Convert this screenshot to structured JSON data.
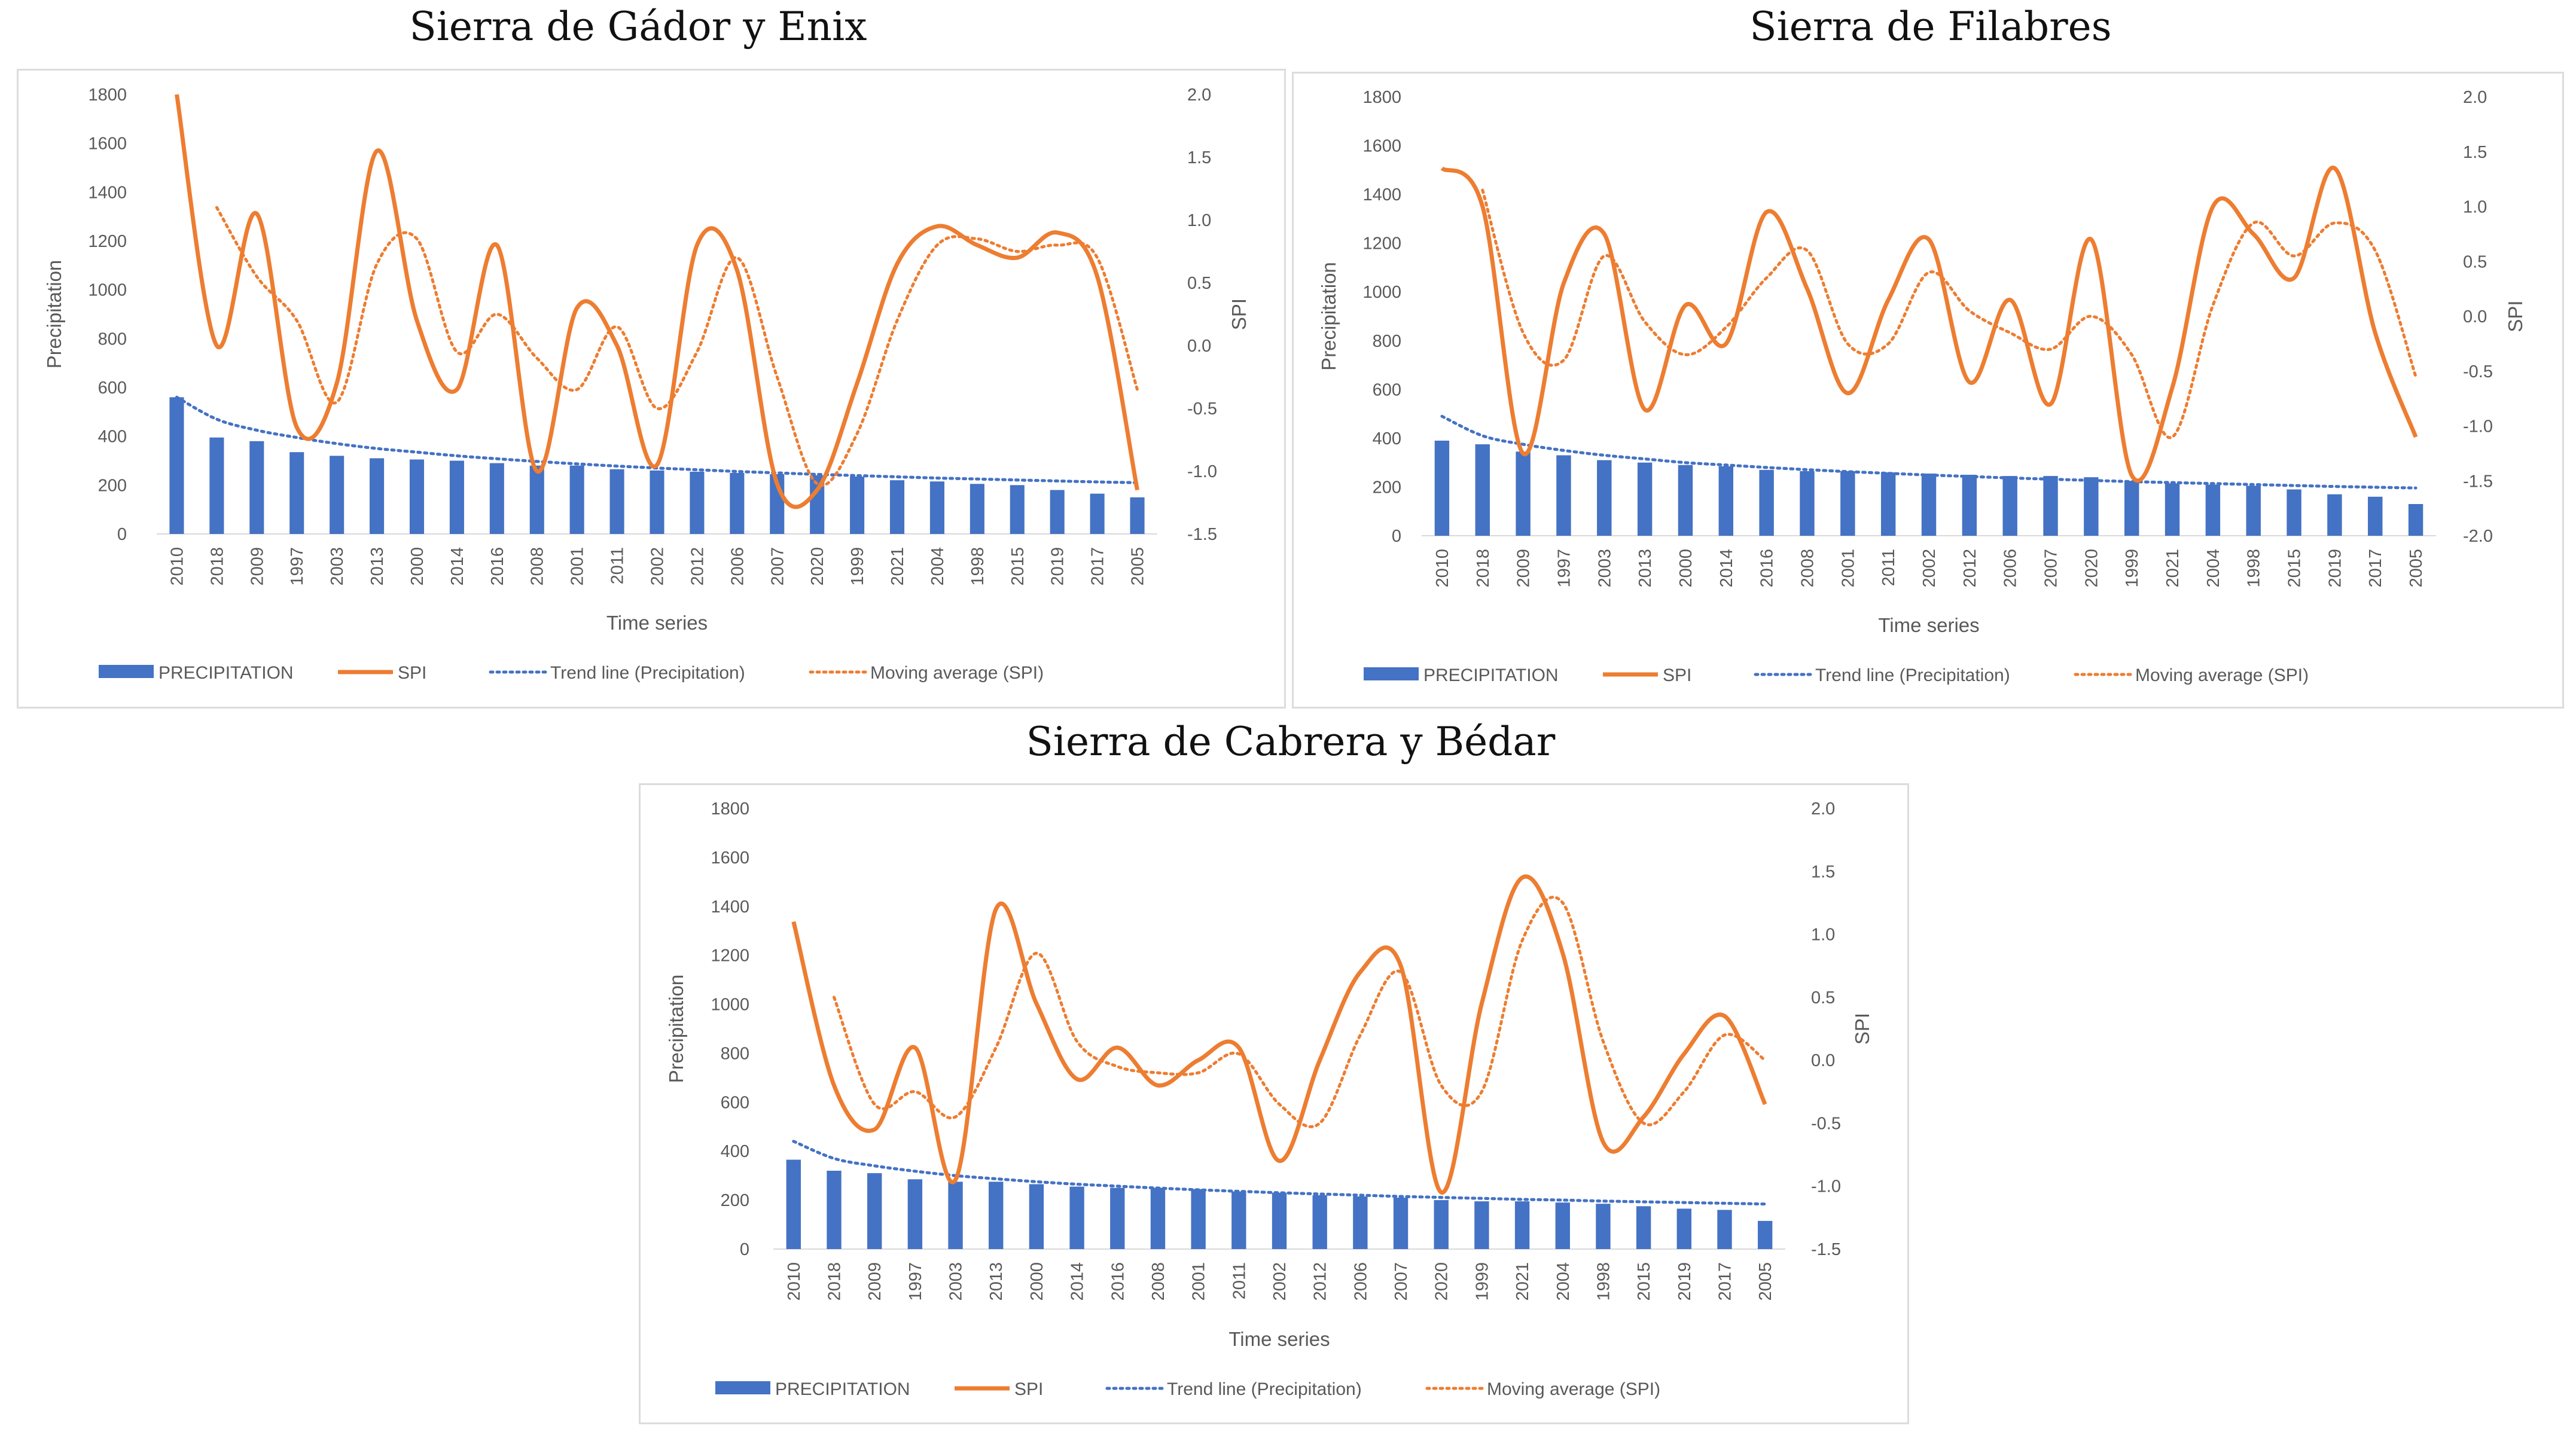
{
  "colors": {
    "bar": "#4472c4",
    "spi": "#ed7d31",
    "trend": "#4472c4",
    "moving": "#ed7d31",
    "tick": "#595959"
  },
  "legend": {
    "precipitation": "PRECIPITATION",
    "spi": "SPI",
    "trend": "Trend line (Precipitation)",
    "moving": "Moving average (SPI)"
  },
  "chart_data": [
    {
      "type": "bar",
      "combo": "bar+line (dual axis)",
      "title": "Sierra de Gádor y Enix",
      "xlabel": "Time series",
      "ylabel": "Precipitation",
      "y2label": "SPI",
      "ylim": [
        0,
        1800
      ],
      "y2lim": [
        -1.5,
        2.0
      ],
      "yticks": [
        "0",
        "200",
        "400",
        "600",
        "800",
        "1000",
        "1200",
        "1400",
        "1600",
        "1800"
      ],
      "y2ticks": [
        "-1.5",
        "-1.0",
        "-0.5",
        "0.0",
        "0.5",
        "1.0",
        "1.5",
        "2.0"
      ],
      "categories": [
        "2010",
        "2018",
        "2009",
        "1997",
        "2003",
        "2013",
        "2000",
        "2014",
        "2016",
        "2008",
        "2001",
        "2011",
        "2002",
        "2012",
        "2006",
        "2007",
        "2020",
        "1999",
        "2021",
        "2004",
        "1998",
        "2015",
        "2019",
        "2017",
        "2005"
      ],
      "series": [
        {
          "name": "PRECIPITATION",
          "kind": "bar",
          "axis": "left",
          "values": [
            560,
            395,
            380,
            335,
            320,
            310,
            305,
            300,
            290,
            280,
            280,
            265,
            260,
            255,
            250,
            245,
            240,
            235,
            220,
            215,
            205,
            200,
            180,
            165,
            150
          ]
        },
        {
          "name": "SPI",
          "kind": "line",
          "axis": "right",
          "values": [
            2.0,
            0.0,
            1.05,
            -0.65,
            -0.3,
            1.55,
            0.2,
            -0.35,
            0.8,
            -1.0,
            0.3,
            0.0,
            -0.95,
            0.8,
            0.6,
            -1.1,
            -1.15,
            -0.3,
            0.65,
            0.95,
            0.8,
            0.7,
            0.9,
            0.55,
            -1.15
          ]
        },
        {
          "name": "Trend line (Precipitation)",
          "kind": "trend",
          "axis": "left",
          "values": [
            560,
            470,
            425,
            395,
            370,
            350,
            335,
            320,
            308,
            297,
            287,
            278,
            270,
            263,
            256,
            250,
            244,
            239,
            234,
            229,
            225,
            221,
            217,
            213,
            210
          ]
        },
        {
          "name": "Moving average (SPI)",
          "kind": "moving",
          "axis": "right",
          "values": [
            null,
            1.1,
            0.55,
            0.2,
            -0.45,
            0.65,
            0.85,
            -0.05,
            0.25,
            -0.1,
            -0.35,
            0.15,
            -0.5,
            -0.05,
            0.7,
            -0.25,
            -1.1,
            -0.7,
            0.2,
            0.8,
            0.85,
            0.75,
            0.8,
            0.7,
            -0.35
          ]
        }
      ]
    },
    {
      "type": "bar",
      "combo": "bar+line (dual axis)",
      "title": "Sierra de Filabres",
      "xlabel": "Time series",
      "ylabel": "Precipitation",
      "y2label": "SPI",
      "ylim": [
        0,
        1800
      ],
      "y2lim": [
        -2.0,
        2.0
      ],
      "yticks": [
        "0",
        "200",
        "400",
        "600",
        "800",
        "1000",
        "1200",
        "1400",
        "1600",
        "1800"
      ],
      "y2ticks": [
        "-2.0",
        "-1.5",
        "-1.0",
        "-0.5",
        "0.0",
        "0.5",
        "1.0",
        "1.5",
        "2.0"
      ],
      "categories": [
        "2010",
        "2018",
        "2009",
        "1997",
        "2003",
        "2013",
        "2000",
        "2014",
        "2016",
        "2008",
        "2001",
        "2011",
        "2002",
        "2012",
        "2006",
        "2007",
        "2020",
        "1999",
        "2021",
        "2004",
        "1998",
        "2015",
        "2019",
        "2017",
        "2005"
      ],
      "series": [
        {
          "name": "PRECIPITATION",
          "kind": "bar",
          "axis": "left",
          "values": [
            390,
            375,
            345,
            330,
            310,
            300,
            290,
            285,
            270,
            265,
            265,
            260,
            255,
            250,
            245,
            245,
            240,
            225,
            215,
            210,
            205,
            190,
            170,
            160,
            130
          ]
        },
        {
          "name": "SPI",
          "kind": "line",
          "axis": "right",
          "values": [
            1.35,
            1.0,
            -1.25,
            0.3,
            0.75,
            -0.85,
            0.1,
            -0.25,
            0.95,
            0.25,
            -0.7,
            0.15,
            0.7,
            -0.6,
            0.15,
            -0.8,
            0.7,
            -1.45,
            -0.65,
            1.0,
            0.75,
            0.35,
            1.35,
            -0.15,
            -1.1
          ]
        },
        {
          "name": "Trend line (Precipitation)",
          "kind": "trend",
          "axis": "left",
          "values": [
            490,
            410,
            375,
            350,
            330,
            315,
            300,
            290,
            280,
            271,
            263,
            256,
            249,
            243,
            237,
            232,
            227,
            222,
            218,
            214,
            210,
            206,
            202,
            199,
            196
          ]
        },
        {
          "name": "Moving average (SPI)",
          "kind": "moving",
          "axis": "right",
          "values": [
            null,
            1.15,
            -0.15,
            -0.4,
            0.55,
            -0.05,
            -0.35,
            -0.1,
            0.35,
            0.6,
            -0.25,
            -0.25,
            0.4,
            0.05,
            -0.15,
            -0.3,
            0.0,
            -0.35,
            -1.1,
            0.1,
            0.85,
            0.55,
            0.85,
            0.6,
            -0.55
          ]
        }
      ]
    },
    {
      "type": "bar",
      "combo": "bar+line (dual axis)",
      "title": "Sierra de Cabrera y Bédar",
      "xlabel": "Time series",
      "ylabel": "Precipitation",
      "y2label": "SPI",
      "ylim": [
        0,
        1800
      ],
      "y2lim": [
        -1.5,
        2.0
      ],
      "yticks": [
        "0",
        "200",
        "400",
        "600",
        "800",
        "1000",
        "1200",
        "1400",
        "1600",
        "1800"
      ],
      "y2ticks": [
        "-1.5",
        "-1.0",
        "-0.5",
        "0.0",
        "0.5",
        "1.0",
        "1.5",
        "2.0"
      ],
      "categories": [
        "2010",
        "2018",
        "2009",
        "1997",
        "2003",
        "2013",
        "2000",
        "2014",
        "2016",
        "2008",
        "2001",
        "2011",
        "2002",
        "2012",
        "2006",
        "2007",
        "2020",
        "1999",
        "2021",
        "2004",
        "1998",
        "2015",
        "2019",
        "2017",
        "2005"
      ],
      "series": [
        {
          "name": "PRECIPITATION",
          "kind": "bar",
          "axis": "left",
          "values": [
            365,
            320,
            310,
            285,
            275,
            275,
            265,
            255,
            250,
            250,
            245,
            235,
            230,
            220,
            215,
            210,
            200,
            195,
            195,
            190,
            185,
            175,
            165,
            160,
            115
          ]
        },
        {
          "name": "SPI",
          "kind": "line",
          "axis": "right",
          "values": [
            1.1,
            -0.2,
            -0.55,
            0.1,
            -0.95,
            1.2,
            0.45,
            -0.15,
            0.1,
            -0.2,
            0.0,
            0.1,
            -0.8,
            0.0,
            0.7,
            0.75,
            -1.05,
            0.45,
            1.45,
            0.85,
            -0.65,
            -0.45,
            0.05,
            0.35,
            -0.35
          ]
        },
        {
          "name": "Trend line (Precipitation)",
          "kind": "trend",
          "axis": "left",
          "values": [
            440,
            370,
            340,
            318,
            300,
            287,
            275,
            265,
            257,
            249,
            242,
            236,
            230,
            225,
            220,
            215,
            211,
            207,
            203,
            200,
            196,
            193,
            190,
            187,
            184
          ]
        },
        {
          "name": "Moving average (SPI)",
          "kind": "moving",
          "axis": "right",
          "values": [
            null,
            0.5,
            -0.35,
            -0.25,
            -0.45,
            0.1,
            0.85,
            0.15,
            -0.05,
            -0.1,
            -0.1,
            0.05,
            -0.35,
            -0.5,
            0.2,
            0.7,
            -0.2,
            -0.25,
            0.95,
            1.25,
            0.15,
            -0.5,
            -0.25,
            0.2,
            0.0
          ]
        }
      ]
    }
  ]
}
